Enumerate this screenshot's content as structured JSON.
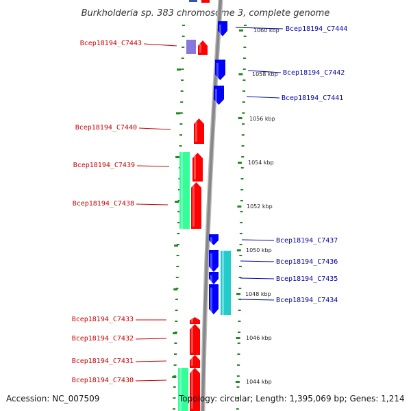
{
  "title": "Burkholderia sp. 383 chromosome 3, complete genome",
  "accession_text": "Accession: NC_007509",
  "topology_text": "Topology: circular; Length: 1,395,069 bp; Genes: 1,214",
  "colors": {
    "forward_gene": "#ff0000",
    "reverse_gene": "#0000ff",
    "forward_label": "#cc0000",
    "reverse_label": "#0000aa",
    "forward_feature": "#33ff99",
    "reverse_feature": "#22cccc",
    "backbone": "#888888",
    "tick": "#228822"
  },
  "scale_labels": [
    "1060 kbp",
    "1058 kbp",
    "1056 kbp",
    "1054 kbp",
    "1052 kbp",
    "1050 kbp",
    "1048 kbp",
    "1046 kbp",
    "1044 kbp"
  ],
  "genes": [
    {
      "id": "Bcep18194_C7444",
      "strand": "reverse"
    },
    {
      "id": "Bcep18194_C7443",
      "strand": "forward"
    },
    {
      "id": "Bcep18194_C7442",
      "strand": "reverse"
    },
    {
      "id": "Bcep18194_C7441",
      "strand": "reverse"
    },
    {
      "id": "Bcep18194_C7440",
      "strand": "forward"
    },
    {
      "id": "Bcep18194_C7439",
      "strand": "forward"
    },
    {
      "id": "Bcep18194_C7438",
      "strand": "forward"
    },
    {
      "id": "Bcep18194_C7437",
      "strand": "reverse"
    },
    {
      "id": "Bcep18194_C7436",
      "strand": "reverse"
    },
    {
      "id": "Bcep18194_C7435",
      "strand": "reverse"
    },
    {
      "id": "Bcep18194_C7434",
      "strand": "reverse"
    },
    {
      "id": "Bcep18194_C7433",
      "strand": "forward"
    },
    {
      "id": "Bcep18194_C7432",
      "strand": "forward"
    },
    {
      "id": "Bcep18194_C7431",
      "strand": "forward"
    },
    {
      "id": "Bcep18194_C7430",
      "strand": "forward"
    }
  ]
}
